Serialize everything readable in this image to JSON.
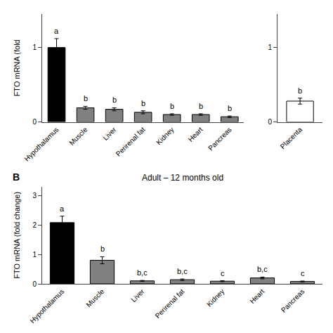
{
  "chart_data": [
    {
      "type": "bar",
      "ylabel": "FTO mRNA (fold",
      "categories": [
        "Hypothalamus",
        "Muscle",
        "Liver",
        "Perirenal fat",
        "Kidney",
        "Heart",
        "Pancreas"
      ],
      "values": [
        1.0,
        0.19,
        0.17,
        0.13,
        0.1,
        0.1,
        0.07
      ],
      "errors": [
        0.12,
        0.02,
        0.02,
        0.02,
        0.01,
        0.01,
        0.01
      ],
      "colors": [
        "#000000",
        "#808080",
        "#808080",
        "#808080",
        "#808080",
        "#808080",
        "#808080"
      ],
      "annotations": [
        {
          "category": "Hypothalamus",
          "text": "a"
        },
        {
          "category": "Muscle",
          "text": "b"
        },
        {
          "category": "Liver",
          "text": "b"
        },
        {
          "category": "Perirenal fat",
          "text": "b"
        },
        {
          "category": "Kidney",
          "text": "b"
        },
        {
          "category": "Heart",
          "text": "b"
        },
        {
          "category": "Pancreas",
          "text": "b"
        }
      ],
      "ylim": [
        0,
        1.45
      ],
      "yticks": [
        0,
        1
      ],
      "grid": false
    },
    {
      "type": "bar",
      "categories": [
        "Placenta"
      ],
      "values": [
        0.28
      ],
      "errors": [
        0.04
      ],
      "colors": [
        "#ffffff"
      ],
      "annotations": [
        {
          "category": "Placenta",
          "text": "b"
        }
      ],
      "ylim": [
        0,
        1.45
      ],
      "yticks": [
        0,
        1
      ],
      "grid": false
    },
    {
      "type": "bar",
      "title": "Adult – 12 months old",
      "ylabel": "FTO mRNA (fold change)",
      "categories": [
        "Hypothalamus",
        "Muscle",
        "Liver",
        "Perirenal fat",
        "Kidney",
        "Heart",
        "Pancreas"
      ],
      "values": [
        2.08,
        0.8,
        0.1,
        0.14,
        0.09,
        0.2,
        0.08
      ],
      "errors": [
        0.22,
        0.12,
        0.015,
        0.025,
        0.015,
        0.03,
        0.015
      ],
      "colors": [
        "#000000",
        "#808080",
        "#808080",
        "#808080",
        "#808080",
        "#808080",
        "#808080"
      ],
      "annotations": [
        {
          "category": "Hypothalamus",
          "text": "a"
        },
        {
          "category": "Muscle",
          "text": "b"
        },
        {
          "category": "Liver",
          "text": "b,c"
        },
        {
          "category": "Perirenal fat",
          "text": "b,c"
        },
        {
          "category": "Kidney",
          "text": "c"
        },
        {
          "category": "Heart",
          "text": "b,c"
        },
        {
          "category": "Pancreas",
          "text": "c"
        },
        {
          "text": "B"
        }
      ],
      "ylim": [
        0,
        3.3
      ],
      "yticks": [
        0,
        1,
        2,
        3
      ],
      "grid": false
    }
  ]
}
